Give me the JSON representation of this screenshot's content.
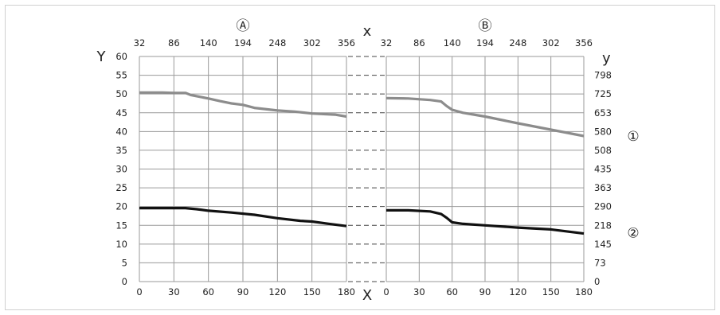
{
  "chart_data": [
    {
      "type": "line",
      "panel_marker": "Ⓐ",
      "xlabel": "X",
      "ylabel": "Y",
      "top_axis_label": "x",
      "x": [
        0,
        30,
        60,
        90,
        120,
        150,
        180
      ],
      "xlim": [
        0,
        180
      ],
      "ylim": [
        0,
        60
      ],
      "yticks": [
        0,
        5,
        10,
        15,
        20,
        25,
        30,
        35,
        40,
        45,
        50,
        55,
        60
      ],
      "top_ticks": [
        "32",
        "86",
        "140",
        "194",
        "248",
        "302",
        "356"
      ],
      "grid": true,
      "series": [
        {
          "name": "①",
          "color": "#8c8c8c",
          "points": [
            [
              0,
              50.4
            ],
            [
              10,
              50.4
            ],
            [
              20,
              50.4
            ],
            [
              30,
              50.3
            ],
            [
              40,
              50.3
            ],
            [
              45,
              49.7
            ],
            [
              60,
              48.8
            ],
            [
              70,
              48.1
            ],
            [
              80,
              47.5
            ],
            [
              90,
              47.1
            ],
            [
              100,
              46.3
            ],
            [
              120,
              45.6
            ],
            [
              135,
              45.3
            ],
            [
              150,
              44.8
            ],
            [
              170,
              44.5
            ],
            [
              180,
              44.0
            ]
          ]
        },
        {
          "name": "②",
          "color": "#111111",
          "points": [
            [
              0,
              19.6
            ],
            [
              20,
              19.6
            ],
            [
              40,
              19.6
            ],
            [
              50,
              19.3
            ],
            [
              60,
              18.9
            ],
            [
              80,
              18.4
            ],
            [
              100,
              17.8
            ],
            [
              120,
              16.9
            ],
            [
              140,
              16.2
            ],
            [
              150,
              16.0
            ],
            [
              165,
              15.4
            ],
            [
              180,
              14.8
            ]
          ]
        }
      ]
    },
    {
      "type": "line",
      "panel_marker": "Ⓑ",
      "xlabel": "",
      "ylabel": "y",
      "x": [
        0,
        30,
        60,
        90,
        120,
        150,
        180
      ],
      "xlim": [
        0,
        180
      ],
      "ylim": [
        0,
        60
      ],
      "right_ticks": [
        "0",
        "73",
        "145",
        "218",
        "290",
        "363",
        "435",
        "508",
        "580",
        "653",
        "725",
        "798"
      ],
      "top_ticks": [
        "32",
        "86",
        "140",
        "194",
        "248",
        "302",
        "356"
      ],
      "grid": true,
      "series": [
        {
          "name": "①",
          "color": "#8c8c8c",
          "points": [
            [
              0,
              48.9
            ],
            [
              20,
              48.8
            ],
            [
              40,
              48.4
            ],
            [
              50,
              48.0
            ],
            [
              55,
              46.8
            ],
            [
              60,
              45.8
            ],
            [
              70,
              45.0
            ],
            [
              90,
              44.0
            ],
            [
              120,
              42.2
            ],
            [
              150,
              40.5
            ],
            [
              180,
              38.8
            ]
          ]
        },
        {
          "name": "②",
          "color": "#111111",
          "points": [
            [
              0,
              19.0
            ],
            [
              20,
              19.0
            ],
            [
              40,
              18.7
            ],
            [
              50,
              18.0
            ],
            [
              55,
              17.0
            ],
            [
              60,
              15.8
            ],
            [
              70,
              15.4
            ],
            [
              90,
              15.0
            ],
            [
              120,
              14.4
            ],
            [
              150,
              13.9
            ],
            [
              180,
              12.8
            ]
          ]
        }
      ]
    }
  ]
}
